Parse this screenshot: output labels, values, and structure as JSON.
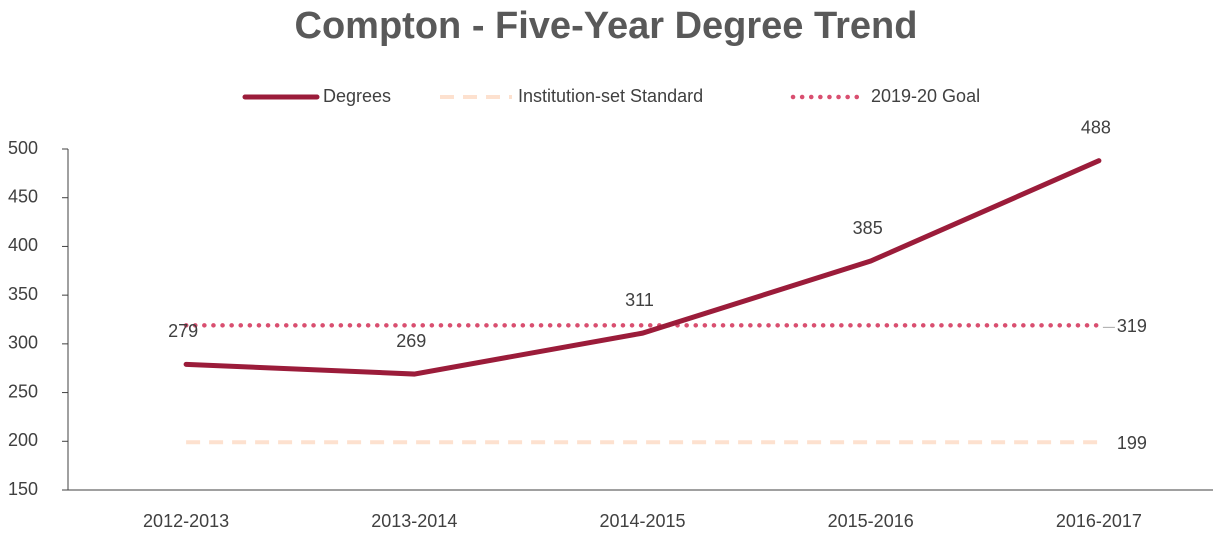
{
  "chart_data": {
    "type": "line",
    "title": "Compton - Five-Year Degree Trend",
    "categories": [
      "2012-2013",
      "2013-2014",
      "2014-2015",
      "2015-2016",
      "2016-2017"
    ],
    "series": [
      {
        "name": "Degrees",
        "color": "#9b1c3a",
        "style": "solid",
        "data_labels": "all",
        "values": [
          279,
          269,
          311,
          385,
          488
        ]
      },
      {
        "name": "Institution-set Standard",
        "color": "#fde1cf",
        "style": "dashed",
        "data_labels": "last",
        "values": [
          199,
          199,
          199,
          199,
          199
        ]
      },
      {
        "name": "2019-20 Goal",
        "color": "#d94f70",
        "style": "dotted",
        "data_labels": "last",
        "values": [
          319,
          319,
          319,
          319,
          319
        ]
      }
    ],
    "ylim": [
      150,
      500
    ],
    "yticks": [
      150,
      200,
      250,
      300,
      350,
      400,
      450,
      500
    ],
    "legend": "top"
  }
}
